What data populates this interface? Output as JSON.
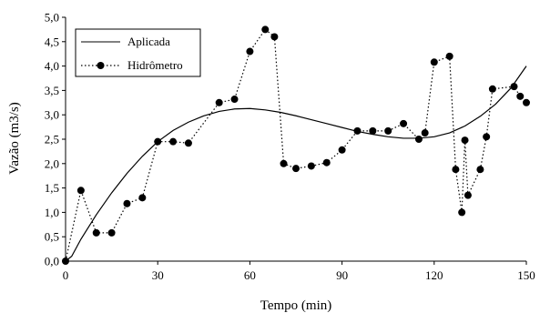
{
  "chart_data": {
    "type": "line",
    "xlabel": "Tempo (min)",
    "ylabel": "Vazão (m3/s)",
    "xlim": [
      0,
      150
    ],
    "ylim": [
      0,
      5
    ],
    "x_ticks": [
      "0",
      "30",
      "60",
      "90",
      "120",
      "150"
    ],
    "y_ticks": [
      "0,0",
      "0,5",
      "1,0",
      "1,5",
      "2,0",
      "2,5",
      "3,0",
      "3,5",
      "4,0",
      "4,5",
      "5,0"
    ],
    "grid": false,
    "legend_position": "top-left",
    "series": [
      {
        "name": "Aplicada",
        "style": "solid",
        "x": [
          0,
          2,
          5,
          10,
          15,
          20,
          25,
          30,
          35,
          40,
          45,
          50,
          55,
          60,
          65,
          70,
          75,
          80,
          85,
          90,
          95,
          100,
          105,
          110,
          115,
          120,
          125,
          130,
          135,
          140,
          145,
          150
        ],
        "y": [
          0.0,
          0.1,
          0.45,
          0.95,
          1.4,
          1.8,
          2.15,
          2.45,
          2.68,
          2.85,
          2.98,
          3.07,
          3.12,
          3.13,
          3.1,
          3.05,
          2.98,
          2.9,
          2.82,
          2.74,
          2.66,
          2.6,
          2.55,
          2.52,
          2.52,
          2.55,
          2.63,
          2.77,
          2.97,
          3.22,
          3.55,
          4.0
        ]
      },
      {
        "name": "Hidrômetro",
        "style": "dotted-markers",
        "x": [
          0,
          5,
          10,
          15,
          20,
          25,
          30,
          35,
          40,
          50,
          55,
          60,
          65,
          68,
          71,
          75,
          80,
          85,
          90,
          95,
          100,
          105,
          110,
          115,
          117,
          120,
          125,
          127,
          129,
          130,
          131,
          135,
          137,
          139,
          146,
          148,
          150
        ],
        "y": [
          0.0,
          1.45,
          0.58,
          0.58,
          1.18,
          1.3,
          2.45,
          2.45,
          2.42,
          3.25,
          3.32,
          4.3,
          4.75,
          4.6,
          2.0,
          1.9,
          1.95,
          2.02,
          2.28,
          2.67,
          2.67,
          2.67,
          2.82,
          2.5,
          2.63,
          4.08,
          4.2,
          1.88,
          1.0,
          2.48,
          1.35,
          1.88,
          2.55,
          3.53,
          3.58,
          3.38,
          3.25
        ]
      }
    ]
  }
}
